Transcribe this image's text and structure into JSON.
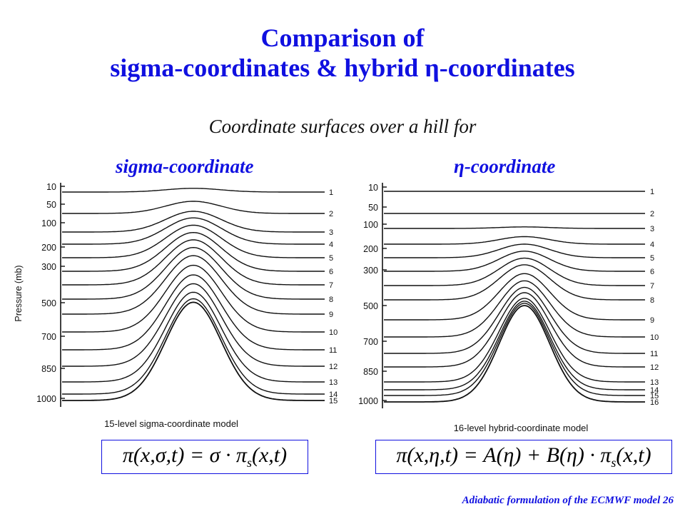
{
  "slide": {
    "title_line1": "Comparison of",
    "title_line2": "sigma-coordinates & hybrid η-coordinates",
    "subtitle": "Coordinate surfaces over a hill for",
    "footer": "Adiabatic formulation of the ECMWF model  26"
  },
  "left_panel": {
    "heading": "sigma-coordinate",
    "caption": "15-level sigma-coordinate model",
    "y_axis_label": "Pressure (mb)",
    "pressure_ticks": [
      {
        "label": "10",
        "p": 10
      },
      {
        "label": "50",
        "p": 50
      },
      {
        "label": "100",
        "p": 100
      },
      {
        "label": "200",
        "p": 200
      },
      {
        "label": "300",
        "p": 300
      },
      {
        "label": "500",
        "p": 500
      },
      {
        "label": "700",
        "p": 700
      },
      {
        "label": "850",
        "p": 850
      },
      {
        "label": "1000",
        "p": 1000
      }
    ],
    "level_labels": [
      "1",
      "2",
      "3",
      "4",
      "5",
      "6",
      "7",
      "8",
      "9",
      "10",
      "11",
      "12",
      "13",
      "14",
      "15"
    ],
    "formula": "π(x,σ,t) = σ · π_s(x,t)"
  },
  "right_panel": {
    "heading": "η-coordinate",
    "caption": "16-level hybrid-coordinate model",
    "pressure_ticks": [
      {
        "label": "10",
        "p": 10
      },
      {
        "label": "50",
        "p": 50
      },
      {
        "label": "100",
        "p": 100
      },
      {
        "label": "200",
        "p": 200
      },
      {
        "label": "300",
        "p": 300
      },
      {
        "label": "500",
        "p": 500
      },
      {
        "label": "700",
        "p": 700
      },
      {
        "label": "850",
        "p": 850
      },
      {
        "label": "1000",
        "p": 1000
      }
    ],
    "level_labels": [
      "1",
      "2",
      "3",
      "4",
      "5",
      "6",
      "7",
      "8",
      "9",
      "10",
      "11",
      "12",
      "13",
      "14",
      "15",
      "16"
    ],
    "formula": "π(x,η,t) = A(η) + B(η) · π_s(x,t)"
  },
  "colors": {
    "title": "#1010e0",
    "lines": "#111111",
    "formula_border": "#1010e0"
  }
}
